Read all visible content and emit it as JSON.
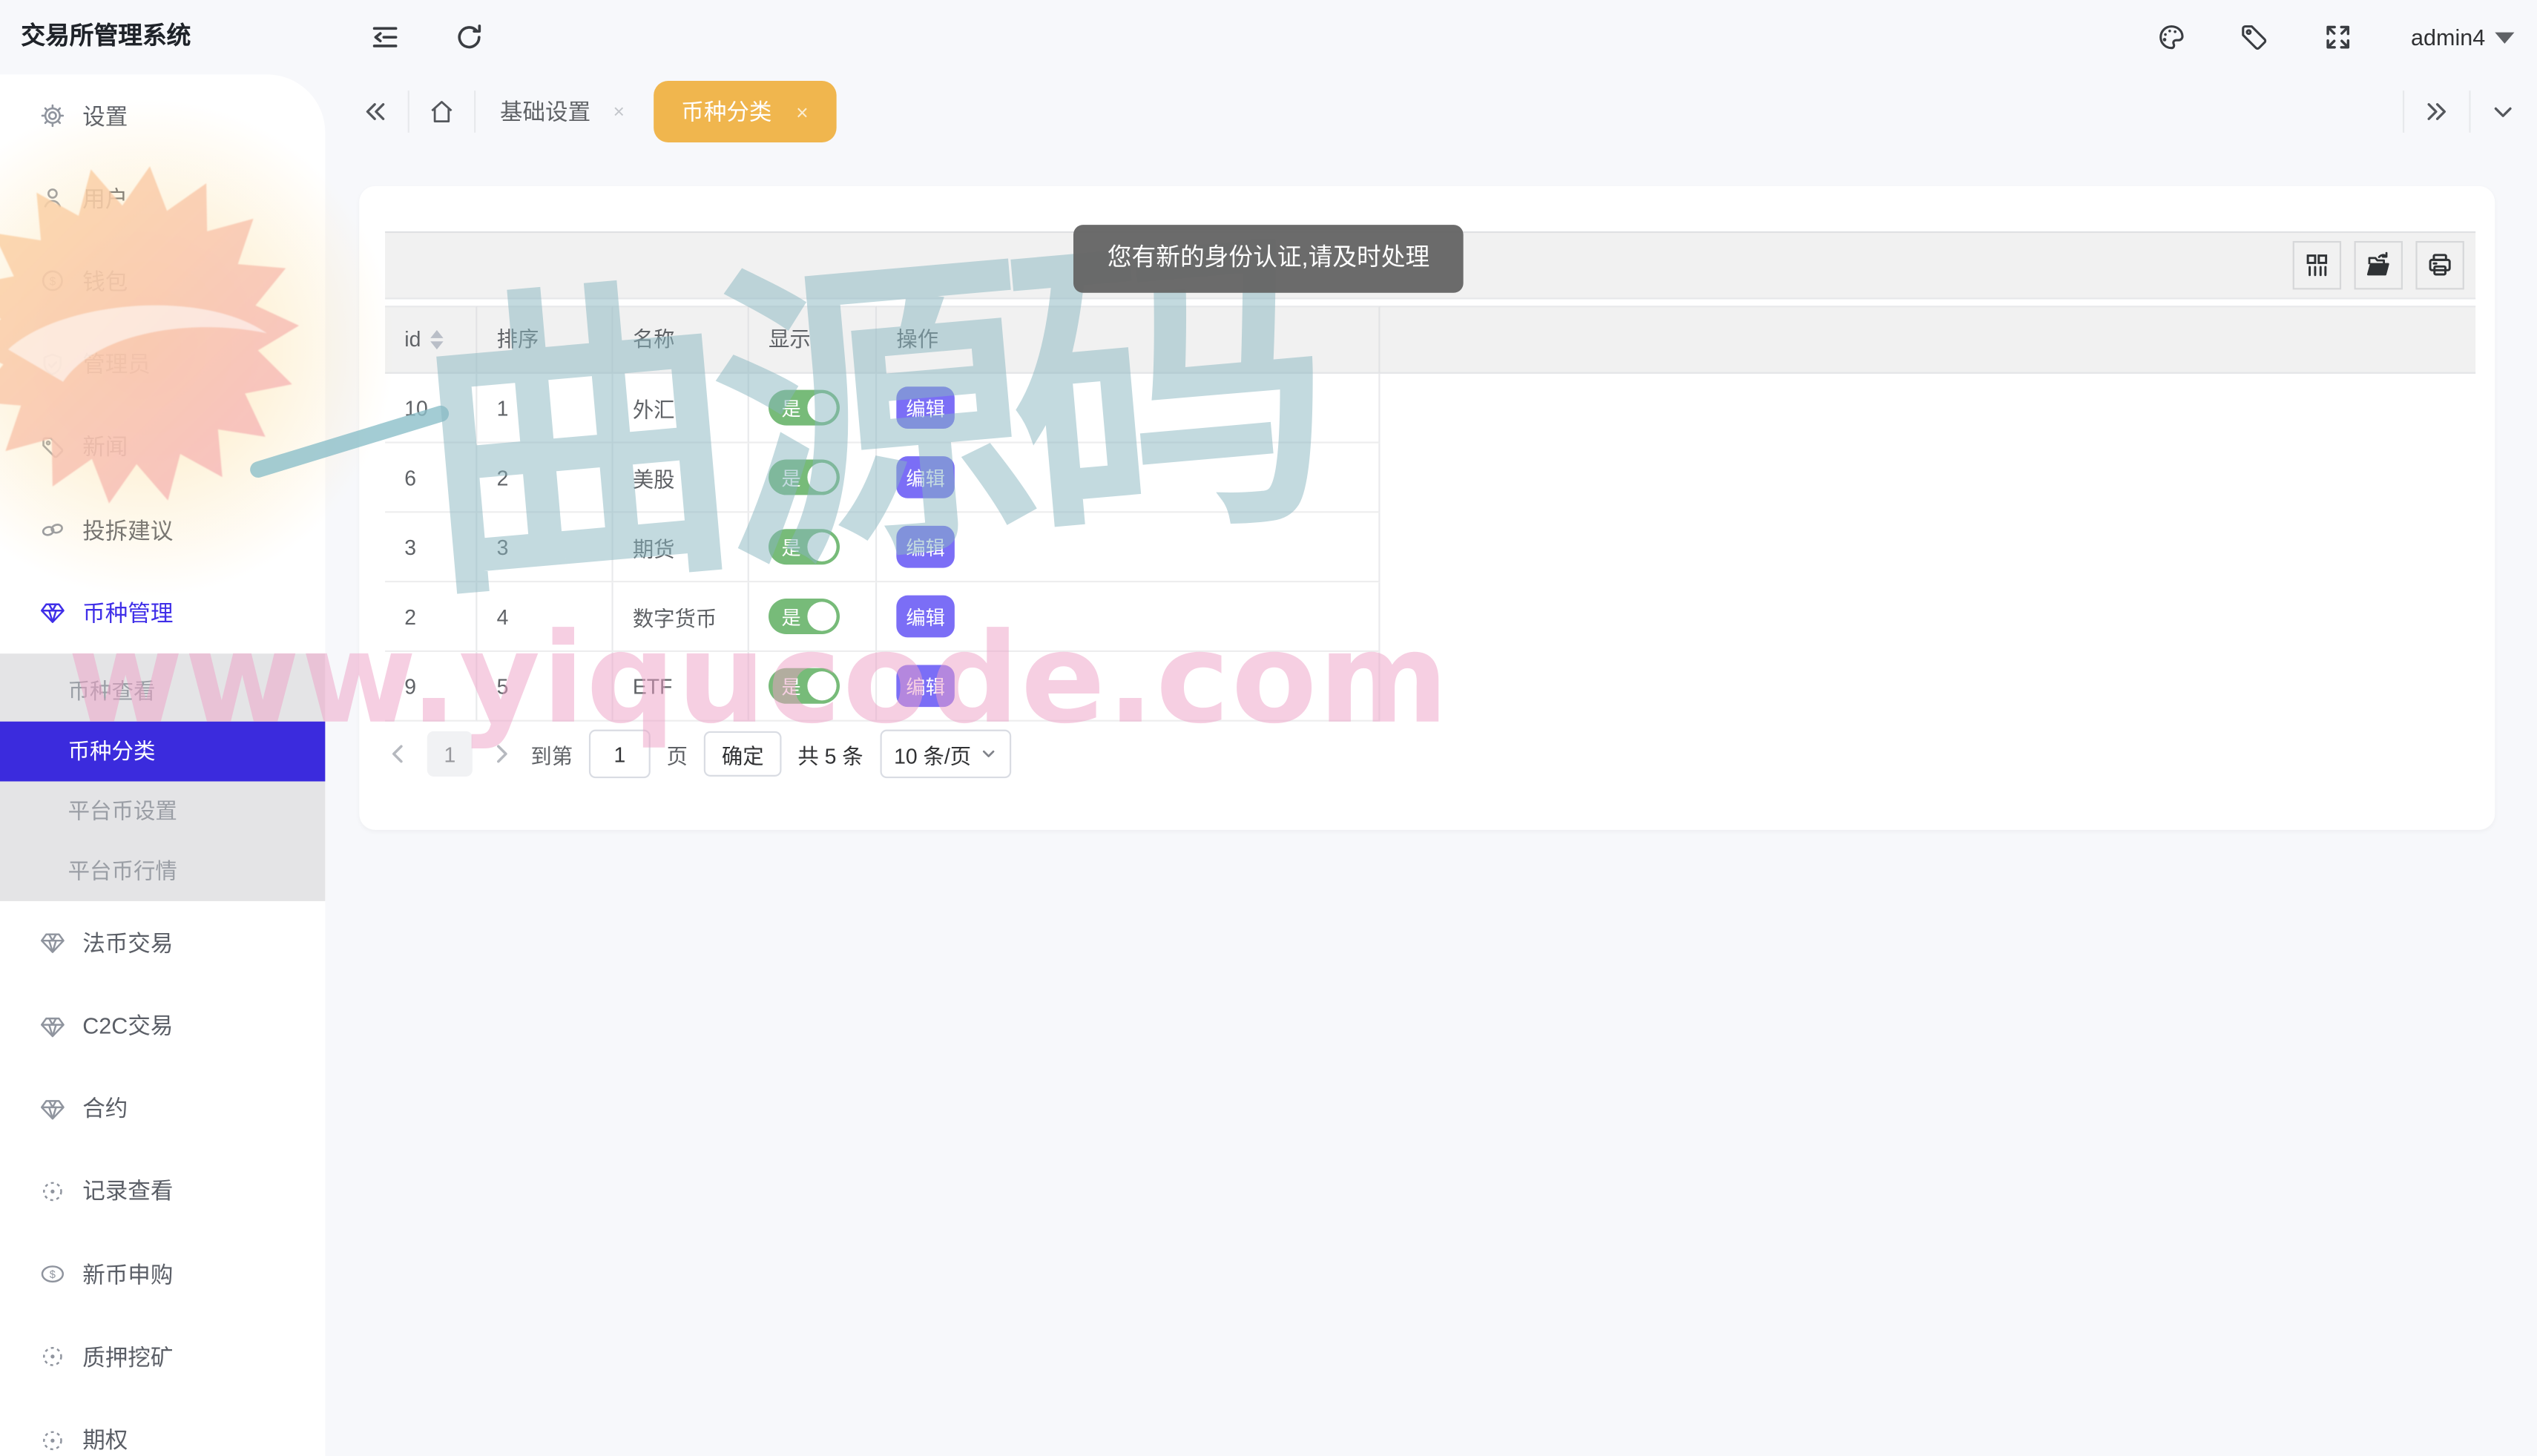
{
  "app": {
    "title": "交易所管理系统"
  },
  "topbar": {
    "username": "admin4",
    "icons": [
      "collapse-menu",
      "refresh",
      "palette",
      "tag",
      "fullscreen",
      "caret-down"
    ]
  },
  "tabs": {
    "item_closable": {
      "label": "基础设置",
      "close": "×"
    },
    "item_active": {
      "label": "币种分类",
      "close": "×"
    }
  },
  "sidebar": {
    "items": [
      {
        "label": "设置",
        "icon": "gear-icon"
      },
      {
        "label": "用户",
        "icon": "user-icon"
      },
      {
        "label": "钱包",
        "icon": "dollar-circle-icon"
      },
      {
        "label": "管理员",
        "icon": "shield-check-icon"
      },
      {
        "label": "新闻",
        "icon": "tag-icon"
      },
      {
        "label": "投拆建议",
        "icon": "link-icon"
      },
      {
        "label": "币种管理",
        "icon": "diamond-icon",
        "active": true
      }
    ],
    "submenu": {
      "items": [
        {
          "label": "币种查看"
        },
        {
          "label": "币种分类",
          "active": true
        },
        {
          "label": "平台币设置"
        },
        {
          "label": "平台币行情"
        }
      ]
    },
    "items_lower": [
      {
        "label": "法币交易",
        "icon": "diamond-icon"
      },
      {
        "label": "C2C交易",
        "icon": "diamond-icon"
      },
      {
        "label": "合约",
        "icon": "diamond-icon"
      },
      {
        "label": "记录查看",
        "icon": "timer-icon"
      },
      {
        "label": "新币申购",
        "icon": "dollar-oval-icon"
      },
      {
        "label": "质押挖矿",
        "icon": "timer-icon"
      },
      {
        "label": "期权",
        "icon": "timer-icon"
      }
    ]
  },
  "toast": {
    "message": "您有新的身份认证,请及时处理"
  },
  "table": {
    "columns": [
      "id",
      "排序",
      "名称",
      "显示",
      "操作"
    ],
    "rows": [
      {
        "id": "10",
        "sort": "1",
        "name": "外汇",
        "show": "是",
        "action": "编辑"
      },
      {
        "id": "6",
        "sort": "2",
        "name": "美股",
        "show": "是",
        "action": "编辑"
      },
      {
        "id": "3",
        "sort": "3",
        "name": "期货",
        "show": "是",
        "action": "编辑"
      },
      {
        "id": "2",
        "sort": "4",
        "name": "数字货币",
        "show": "是",
        "action": "编辑"
      },
      {
        "id": "9",
        "sort": "5",
        "name": "ETF",
        "show": "是",
        "action": "编辑"
      }
    ]
  },
  "pagination": {
    "current_page": "1",
    "goto_label": "到第",
    "page_input_value": "1",
    "page_suffix": "页",
    "confirm_label": "确定",
    "total_label": "共 5 条",
    "page_size": "10 条/页"
  },
  "watermark": {
    "brand_prefix": "一",
    "brand": "曲源码",
    "url": "www.yiqucode.com"
  },
  "colors": {
    "primary": "#3b2bdd",
    "tab_active": "#f0b64e",
    "toggle_on": "#77bb79",
    "edit_button": "#7b6ef6",
    "toast_bg": "#666666"
  }
}
